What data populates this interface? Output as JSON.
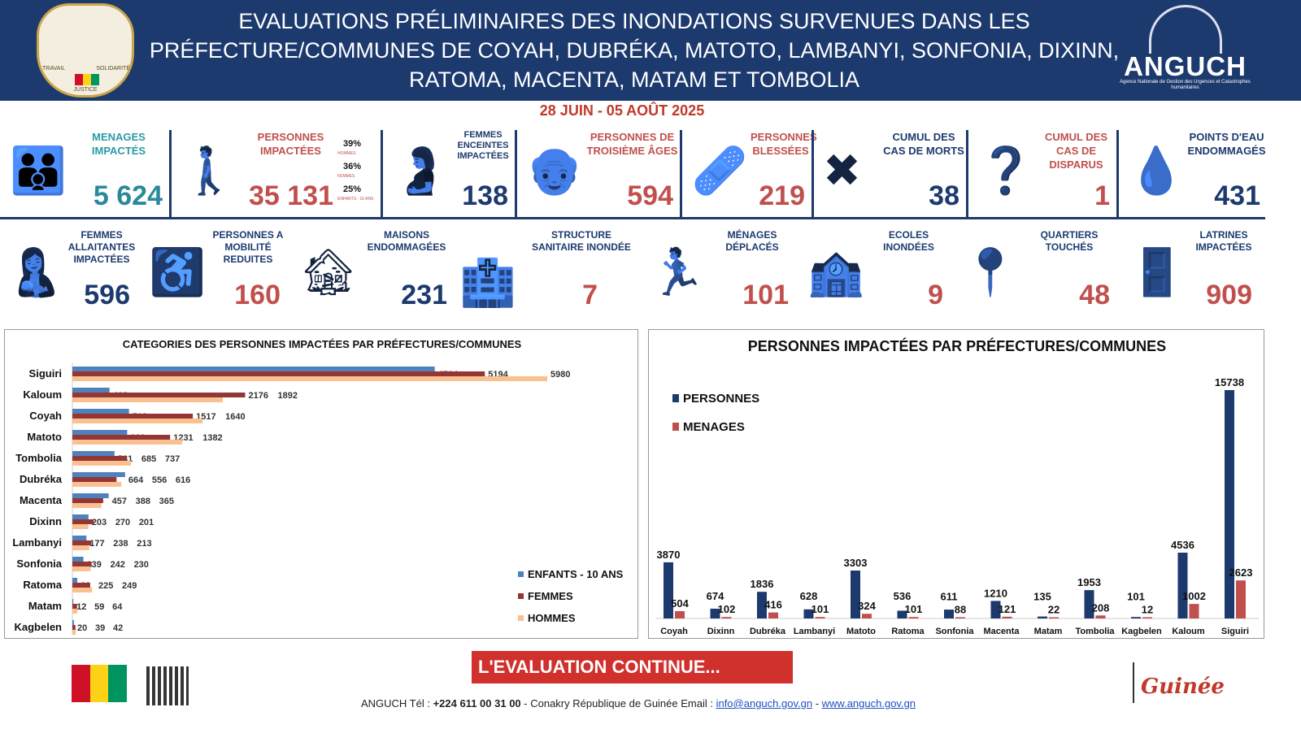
{
  "header": {
    "title": "EVALUATIONS PRÉLIMINAIRES DES INONDATIONS SURVENUES DANS LES PRÉFECTURE/COMMUNES DE COYAH, DUBRÉKA, MATOTO, LAMBANYI, SONFONIA, DIXINN, RATOMA, MACENTA, MATAM ET TOMBOLIA",
    "crest_text": [
      "TRAVAIL",
      "JUSTICE",
      "SOLIDARITÉ"
    ],
    "logo_name": "ANGUCH",
    "logo_sub": "Agence Nationale de Gestion des Urgences et Catastrophes humanitaires",
    "date": "28 JUIN  - 05 AOÛT 2025"
  },
  "stats_row1": [
    {
      "label": "MENAGES IMPACTÉS",
      "value": "5 624",
      "icon": "family-icon"
    },
    {
      "label": "PERSONNES IMPACTÉES",
      "value": "35 131",
      "icon": "people-help-icon",
      "breakdown": [
        {
          "pct": "39%",
          "label": "HOMMES"
        },
        {
          "pct": "36%",
          "label": "FEMMES"
        },
        {
          "pct": "25%",
          "label": "ENFANTS - 10 ANS"
        }
      ]
    },
    {
      "label": "FEMMES ENCEINTES IMPACTÉES",
      "value": "138",
      "icon": "pregnant-icon"
    },
    {
      "label": "PERSONNES DE TROISIÈME ÂGES",
      "value": "594",
      "icon": "elderly-icon"
    },
    {
      "label": "PERSONNES BLESSÉES",
      "value": "219",
      "icon": "injured-icon"
    },
    {
      "label": "CUMUL DES CAS DE MORTS",
      "value": "38",
      "icon": "death-icon"
    },
    {
      "label": "CUMUL DES CAS DE DISPARUS",
      "value": "1",
      "icon": "missing-icon"
    },
    {
      "label": "POINTS D'EAU ENDOMMAGÉS",
      "value": "431",
      "icon": "water-drop-icon"
    }
  ],
  "stats_row2": [
    {
      "label": "FEMMES ALLAITANTES IMPACTÉES",
      "value": "596"
    },
    {
      "label": "PERSONNES A MOBILITÉ REDUITES",
      "value": "160"
    },
    {
      "label": "MAISONS ENDOMMAGÉES",
      "value": "231"
    },
    {
      "label": "STRUCTURE SANITAIRE INONDÉE",
      "value": "7"
    },
    {
      "label": "MÉNAGES DÉPLACÉS",
      "value": "101"
    },
    {
      "label": "ECOLES INONDÉES",
      "value": "9"
    },
    {
      "label": "QUARTIERS TOUCHÉS",
      "value": "48"
    },
    {
      "label": "LATRINES IMPACTÉES",
      "value": "909"
    }
  ],
  "chart_data": [
    {
      "type": "bar",
      "orientation": "horizontal",
      "title": "CATEGORIES DES PERSONNES IMPACTÉES PAR PRÉFECTURES/COMMUNES",
      "categories": [
        "Siguiri",
        "Kaloum",
        "Coyah",
        "Matoto",
        "Tombolia",
        "Dubréka",
        "Macenta",
        "Dixinn",
        "Lambanyi",
        "Sonfonia",
        "Ratoma",
        "Matam",
        "Kagbelen"
      ],
      "series": [
        {
          "name": "ENFANTS - 10 ANS",
          "color": "#4f81bd",
          "values": [
            4564,
            468,
            713,
            690,
            531,
            664,
            457,
            203,
            177,
            139,
            62,
            12,
            20
          ]
        },
        {
          "name": "FEMMES",
          "color": "#943634",
          "values": [
            5194,
            2176,
            1517,
            1231,
            685,
            556,
            388,
            270,
            238,
            242,
            225,
            59,
            39
          ]
        },
        {
          "name": "HOMMES",
          "color": "#fac090",
          "values": [
            5980,
            1892,
            1640,
            1382,
            737,
            616,
            365,
            201,
            213,
            230,
            249,
            64,
            42
          ]
        }
      ],
      "legend": "bottom-right",
      "xlim": [
        0,
        6000
      ]
    },
    {
      "type": "bar",
      "title": "PERSONNES IMPACTÉES PAR PRÉFECTURES/COMMUNES",
      "categories": [
        "Coyah",
        "Dixinn",
        "Dubréka",
        "Lambanyi",
        "Matoto",
        "Ratoma",
        "Sonfonia",
        "Macenta",
        "Matam",
        "Tombolia",
        "Kagbelen",
        "Kaloum",
        "Siguiri"
      ],
      "series": [
        {
          "name": "PERSONNES",
          "color": "#1c3a6e",
          "values": [
            3870,
            674,
            1836,
            628,
            3303,
            536,
            611,
            1210,
            135,
            1953,
            101,
            4536,
            15738
          ]
        },
        {
          "name": "MENAGES",
          "color": "#c0504d",
          "values": [
            504,
            102,
            416,
            101,
            324,
            101,
            88,
            121,
            22,
            208,
            12,
            1002,
            2623
          ]
        }
      ],
      "legend": "top-left",
      "ylim": [
        0,
        16000
      ]
    }
  ],
  "footer": {
    "banner": "L'EVALUATION CONTINUE...",
    "contact_prefix": "ANGUCH Tél : ",
    "phone": "+224 611 00 31 00",
    "contact_mid": " - Conakry République de Guinée  Email : ",
    "email": "info@anguch.gov.gn",
    "sep": " - ",
    "website": "www.anguch.gov.gn",
    "brand": "Guinée"
  }
}
